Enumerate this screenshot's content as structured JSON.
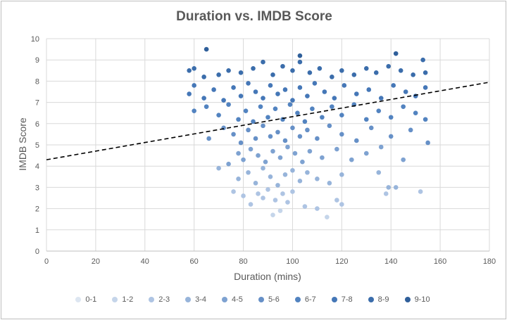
{
  "chart_data": {
    "type": "scatter",
    "title": "Duration vs. IMDB Score",
    "xlabel": "Duration (mins)",
    "ylabel": "IMDB Score",
    "xlim": [
      0,
      180
    ],
    "ylim": [
      0,
      10
    ],
    "x_ticks": [
      "0",
      "20",
      "40",
      "60",
      "80",
      "100",
      "120",
      "140",
      "160",
      "180"
    ],
    "y_ticks": [
      "0",
      "1",
      "2",
      "3",
      "4",
      "5",
      "6",
      "7",
      "8",
      "9",
      "10"
    ],
    "grid": true,
    "legend_position": "bottom",
    "series": [
      {
        "name": "0-1",
        "color": "#dde6f1",
        "points": []
      },
      {
        "name": "1-2",
        "color": "#c5d5ea",
        "points": [
          [
            92,
            1.7
          ],
          [
            95,
            1.9
          ],
          [
            114,
            1.6
          ]
        ]
      },
      {
        "name": "2-3",
        "color": "#aec4e3",
        "points": [
          [
            76,
            2.8
          ],
          [
            80,
            2.6
          ],
          [
            83,
            2.2
          ],
          [
            86,
            2.7
          ],
          [
            88,
            2.5
          ],
          [
            90,
            2.9
          ],
          [
            93,
            2.4
          ],
          [
            96,
            2.7
          ],
          [
            98,
            2.3
          ],
          [
            100,
            2.8
          ],
          [
            105,
            2.1
          ],
          [
            110,
            2.0
          ],
          [
            118,
            2.4
          ],
          [
            120,
            2.2
          ],
          [
            138,
            2.7
          ],
          [
            152,
            2.8
          ]
        ]
      },
      {
        "name": "3-4",
        "color": "#97b4da",
        "points": [
          [
            70,
            3.9
          ],
          [
            78,
            3.4
          ],
          [
            82,
            3.7
          ],
          [
            85,
            3.2
          ],
          [
            88,
            3.9
          ],
          [
            91,
            3.5
          ],
          [
            94,
            3.1
          ],
          [
            97,
            3.6
          ],
          [
            100,
            3.8
          ],
          [
            103,
            3.3
          ],
          [
            106,
            3.7
          ],
          [
            110,
            3.4
          ],
          [
            115,
            3.2
          ],
          [
            120,
            3.6
          ],
          [
            135,
            3.7
          ],
          [
            139,
            3.0
          ],
          [
            142,
            3.0
          ]
        ]
      },
      {
        "name": "4-5",
        "color": "#7ea2d1",
        "points": [
          [
            74,
            4.1
          ],
          [
            78,
            4.6
          ],
          [
            80,
            4.3
          ],
          [
            83,
            4.8
          ],
          [
            86,
            4.5
          ],
          [
            89,
            4.2
          ],
          [
            92,
            4.7
          ],
          [
            95,
            4.4
          ],
          [
            98,
            4.9
          ],
          [
            101,
            4.6
          ],
          [
            104,
            4.2
          ],
          [
            107,
            4.7
          ],
          [
            112,
            4.4
          ],
          [
            118,
            4.8
          ],
          [
            124,
            4.3
          ],
          [
            130,
            4.6
          ],
          [
            136,
            4.9
          ],
          [
            145,
            4.3
          ]
        ]
      },
      {
        "name": "5-6",
        "color": "#6690c7",
        "points": [
          [
            66,
            5.3
          ],
          [
            72,
            5.8
          ],
          [
            76,
            5.5
          ],
          [
            79,
            5.1
          ],
          [
            82,
            5.7
          ],
          [
            85,
            5.3
          ],
          [
            88,
            5.9
          ],
          [
            91,
            5.4
          ],
          [
            94,
            5.6
          ],
          [
            97,
            5.2
          ],
          [
            100,
            5.8
          ],
          [
            103,
            5.4
          ],
          [
            106,
            5.7
          ],
          [
            110,
            5.3
          ],
          [
            115,
            5.9
          ],
          [
            120,
            5.5
          ],
          [
            126,
            5.2
          ],
          [
            132,
            5.8
          ],
          [
            140,
            5.4
          ],
          [
            148,
            5.7
          ],
          [
            155,
            5.1
          ]
        ]
      },
      {
        "name": "6-7",
        "color": "#5283c0",
        "points": [
          [
            60,
            6.6
          ],
          [
            65,
            6.8
          ],
          [
            70,
            6.4
          ],
          [
            74,
            6.9
          ],
          [
            78,
            6.2
          ],
          [
            81,
            6.6
          ],
          [
            84,
            6.1
          ],
          [
            87,
            6.8
          ],
          [
            90,
            6.3
          ],
          [
            93,
            6.7
          ],
          [
            96,
            6.2
          ],
          [
            99,
            6.9
          ],
          [
            102,
            6.5
          ],
          [
            105,
            6.1
          ],
          [
            108,
            6.7
          ],
          [
            112,
            6.3
          ],
          [
            116,
            6.8
          ],
          [
            120,
            6.4
          ],
          [
            125,
            6.9
          ],
          [
            130,
            6.2
          ],
          [
            135,
            6.6
          ],
          [
            140,
            6.3
          ],
          [
            145,
            6.8
          ],
          [
            150,
            6.5
          ],
          [
            154,
            6.2
          ]
        ]
      },
      {
        "name": "7-8",
        "color": "#4577b7",
        "points": [
          [
            58,
            7.4
          ],
          [
            60,
            7.8
          ],
          [
            64,
            7.2
          ],
          [
            68,
            7.6
          ],
          [
            72,
            7.1
          ],
          [
            76,
            7.7
          ],
          [
            79,
            7.3
          ],
          [
            82,
            7.9
          ],
          [
            85,
            7.5
          ],
          [
            88,
            7.2
          ],
          [
            91,
            7.8
          ],
          [
            94,
            7.4
          ],
          [
            97,
            7.6
          ],
          [
            100,
            7.1
          ],
          [
            103,
            7.7
          ],
          [
            106,
            7.3
          ],
          [
            109,
            7.9
          ],
          [
            113,
            7.5
          ],
          [
            117,
            7.2
          ],
          [
            121,
            7.8
          ],
          [
            126,
            7.4
          ],
          [
            131,
            7.6
          ],
          [
            136,
            7.2
          ],
          [
            141,
            7.8
          ],
          [
            146,
            7.5
          ],
          [
            150,
            7.3
          ],
          [
            154,
            7.7
          ]
        ]
      },
      {
        "name": "8-9",
        "color": "#3b6dab",
        "points": [
          [
            58,
            8.5
          ],
          [
            60,
            8.6
          ],
          [
            64,
            8.2
          ],
          [
            70,
            8.3
          ],
          [
            74,
            8.5
          ],
          [
            79,
            8.4
          ],
          [
            84,
            8.6
          ],
          [
            88,
            8.9
          ],
          [
            92,
            8.3
          ],
          [
            96,
            8.7
          ],
          [
            100,
            8.5
          ],
          [
            103,
            8.9
          ],
          [
            107,
            8.4
          ],
          [
            111,
            8.6
          ],
          [
            116,
            8.2
          ],
          [
            120,
            8.5
          ],
          [
            125,
            8.3
          ],
          [
            130,
            8.6
          ],
          [
            134,
            8.4
          ],
          [
            139,
            8.7
          ],
          [
            144,
            8.5
          ],
          [
            149,
            8.3
          ],
          [
            153,
            9.0
          ],
          [
            154,
            8.4
          ]
        ]
      },
      {
        "name": "9-10",
        "color": "#2f5f9a",
        "points": [
          [
            65,
            9.5
          ],
          [
            103,
            9.2
          ],
          [
            142,
            9.3
          ]
        ]
      }
    ],
    "trendline": {
      "style": "dashed",
      "points": [
        [
          0,
          4.3
        ],
        [
          180,
          7.95
        ]
      ]
    }
  }
}
